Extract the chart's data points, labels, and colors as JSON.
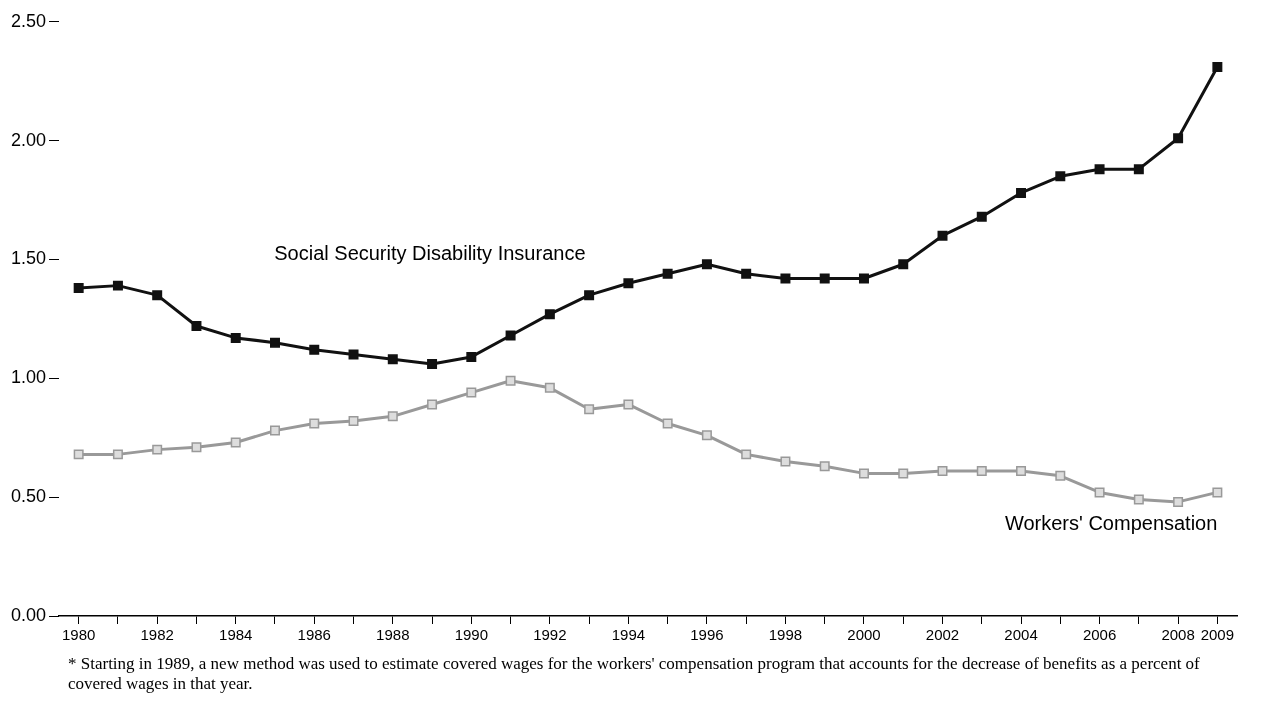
{
  "chart_data": {
    "type": "line",
    "x": [
      1980,
      1981,
      1982,
      1983,
      1984,
      1985,
      1986,
      1987,
      1988,
      1989,
      1990,
      1991,
      1992,
      1993,
      1994,
      1995,
      1996,
      1997,
      1998,
      1999,
      2000,
      2001,
      2002,
      2003,
      2004,
      2005,
      2006,
      2007,
      2008,
      2009
    ],
    "series": [
      {
        "name": "Social Security Disability Insurance",
        "color": "#111111",
        "values": [
          1.38,
          1.39,
          1.35,
          1.22,
          1.17,
          1.15,
          1.12,
          1.1,
          1.08,
          1.06,
          1.09,
          1.18,
          1.27,
          1.35,
          1.4,
          1.44,
          1.48,
          1.44,
          1.42,
          1.42,
          1.42,
          1.48,
          1.6,
          1.68,
          1.78,
          1.85,
          1.88,
          1.88,
          2.01,
          2.31
        ]
      },
      {
        "name": "Workers' Compensation",
        "color": "#999999",
        "values": [
          0.68,
          0.68,
          0.7,
          0.71,
          0.73,
          0.78,
          0.81,
          0.82,
          0.84,
          0.89,
          0.94,
          0.99,
          0.96,
          0.87,
          0.89,
          0.81,
          0.76,
          0.68,
          0.65,
          0.63,
          0.6,
          0.6,
          0.61,
          0.61,
          0.61,
          0.59,
          0.52,
          0.49,
          0.48,
          0.52
        ]
      }
    ],
    "xlim": [
      1979.5,
      2009.5
    ],
    "xticks": [
      1980,
      {
        "value": 1981,
        "label": null
      },
      1982,
      {
        "value": 1983,
        "label": null
      },
      1984,
      {
        "value": 1985,
        "label": null
      },
      1986,
      {
        "value": 1987,
        "label": null
      },
      1988,
      {
        "value": 1989,
        "label": null
      },
      1990,
      {
        "value": 1991,
        "label": null
      },
      1992,
      {
        "value": 1993,
        "label": null
      },
      1994,
      {
        "value": 1995,
        "label": null
      },
      1996,
      {
        "value": 1997,
        "label": null
      },
      1998,
      {
        "value": 1999,
        "label": null
      },
      2000,
      {
        "value": 2001,
        "label": null
      },
      2002,
      {
        "value": 2003,
        "label": null
      },
      2004,
      {
        "value": 2005,
        "label": null
      },
      2006,
      {
        "value": 2007,
        "label": null
      },
      2008,
      2009
    ],
    "ylim": [
      0,
      2.5
    ],
    "yticks": [
      {
        "value": 0,
        "label": "0.00"
      },
      {
        "value": 0.5,
        "label": "0.50"
      },
      {
        "value": 1,
        "label": "1.00"
      },
      {
        "value": 1.5,
        "label": "1.50"
      },
      {
        "value": 2,
        "label": "2.00"
      },
      {
        "value": 2.5,
        "label": "2.50"
      }
    ],
    "marker": "square",
    "grid": false,
    "legend": false,
    "annotations": [
      "* Starting in 1989, a new method was used to estimate covered wages for the workers' compensation program that accounts for the decrease of benefits as a percent of covered wages in that year."
    ]
  }
}
